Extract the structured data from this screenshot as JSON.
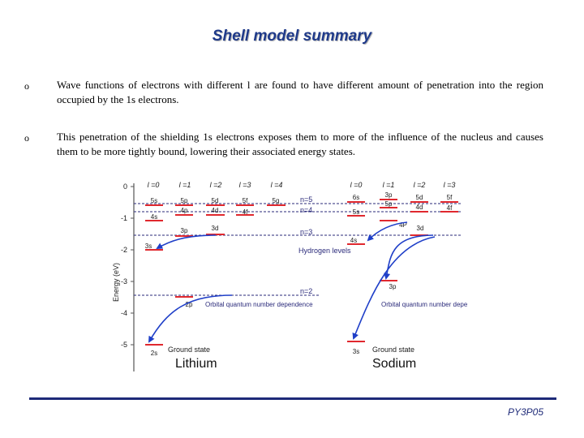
{
  "slide": {
    "title": "Shell model summary",
    "bullets": [
      {
        "marker": "o",
        "text": "Wave functions of electrons with different l are found to have different amount of penetration into the region occupied by the 1s electrons."
      },
      {
        "marker": "o",
        "text": "This penetration of the shielding 1s electrons exposes them to more of the influence of the nucleus and causes them to be more tightly bound, lowering their associated energy states."
      }
    ],
    "footer": "PY3P05"
  },
  "figure": {
    "y_axis_label": "Energy (eV)",
    "y_ticks": [
      "0",
      "-1",
      "-2",
      "-3",
      "-4",
      "-5"
    ],
    "lithium": {
      "name": "Lithium",
      "columns": [
        "l =0",
        "l =1",
        "l =2",
        "l =3",
        "l =4"
      ],
      "levels": [
        "5s",
        "5p",
        "5d",
        "5f",
        "5g",
        "4s",
        "4p",
        "4d",
        "4f",
        "3s",
        "3p",
        "3d",
        "2p",
        "2s"
      ],
      "ground_state": "Ground state",
      "orbital_note": "Orbital quantum number dependence"
    },
    "hydrogen": {
      "levels": [
        "n=5",
        "n=4",
        "n=3",
        "n=2"
      ],
      "label": "Hydrogen levels"
    },
    "sodium": {
      "name": "Sodium",
      "columns": [
        "l =0",
        "l =1",
        "l =2",
        "l =3"
      ],
      "levels": [
        "6s",
        "3p",
        "5d",
        "5f",
        "5p",
        "5s",
        "4d",
        "4f",
        "4P",
        "3d",
        "4s",
        "3p",
        "3s"
      ],
      "ground_state": "Ground state",
      "orbital_note": "Orbital quantum number dependence"
    },
    "colors": {
      "level": "#e0282e",
      "arrow": "#1f3fc8",
      "hydrogen": "#2a2a7a",
      "text": "#1a1a1a"
    }
  }
}
